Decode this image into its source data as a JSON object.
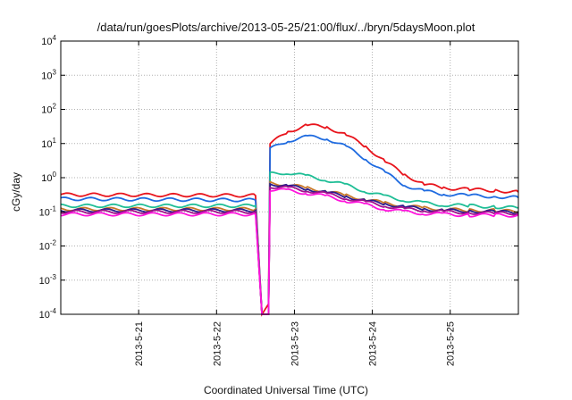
{
  "chart_data": {
    "type": "line",
    "title": "/data/run/goesPlots/archive/2013-05-25/21:00/flux/../bryn/5daysMoon.plot",
    "xlabel": "Coordinated Universal Time (UTC)",
    "ylabel": "cGy/day",
    "y_scale": "log",
    "xlim": [
      "2013-05-20T00:00",
      "2013-05-25T21:00"
    ],
    "ylim": [
      0.0001,
      10000
    ],
    "x_ticks": [
      "2013-5-21",
      "2013-5-22",
      "2013-5-23",
      "2013-5-24",
      "2013-5-25"
    ],
    "y_ticks": [
      {
        "base": "10",
        "exp": "-4"
      },
      {
        "base": "10",
        "exp": "-3"
      },
      {
        "base": "10",
        "exp": "-2"
      },
      {
        "base": "10",
        "exp": "-1"
      },
      {
        "base": "10",
        "exp": "0"
      },
      {
        "base": "10",
        "exp": "1"
      },
      {
        "base": "10",
        "exp": "2"
      },
      {
        "base": "10",
        "exp": "3"
      },
      {
        "base": "10",
        "exp": "4"
      }
    ],
    "grid": true,
    "series": [
      {
        "color": "#e8141c",
        "x": [
          "2013-05-20T00:00",
          "2013-05-22T12:00",
          "2013-05-22T14:00",
          "2013-05-22T16:00",
          "2013-05-22T16:30",
          "2013-05-22T22:00",
          "2013-05-23T04:00",
          "2013-05-23T10:00",
          "2013-05-23T16:00",
          "2013-05-23T22:00",
          "2013-05-24T04:00",
          "2013-05-24T10:00",
          "2013-05-24T16:00",
          "2013-05-24T22:00",
          "2013-05-25T06:00",
          "2013-05-25T14:00",
          "2013-05-25T21:00"
        ],
        "values": [
          0.32,
          0.3,
          0.0001,
          0.0002,
          10,
          22,
          35,
          30,
          18,
          8,
          3,
          1.2,
          0.65,
          0.5,
          0.45,
          0.42,
          0.38
        ]
      },
      {
        "color": "#1f6be0",
        "x": [
          "2013-05-20T00:00",
          "2013-05-22T12:00",
          "2013-05-22T14:00",
          "2013-05-22T16:00",
          "2013-05-22T16:30",
          "2013-05-22T22:00",
          "2013-05-23T04:00",
          "2013-05-23T10:00",
          "2013-05-23T16:00",
          "2013-05-23T22:00",
          "2013-05-24T04:00",
          "2013-05-24T10:00",
          "2013-05-24T16:00",
          "2013-05-24T22:00",
          "2013-05-25T06:00",
          "2013-05-25T14:00",
          "2013-05-25T21:00"
        ],
        "values": [
          0.24,
          0.22,
          0.0001,
          0.0001,
          7,
          12,
          16,
          14,
          8,
          3.5,
          1.4,
          0.6,
          0.4,
          0.33,
          0.3,
          0.28,
          0.26
        ]
      },
      {
        "color": "#1fbe96",
        "x": [
          "2013-05-20T00:00",
          "2013-05-22T12:00",
          "2013-05-22T14:00",
          "2013-05-22T16:00",
          "2013-05-22T16:30",
          "2013-05-22T22:00",
          "2013-05-23T04:00",
          "2013-05-23T10:00",
          "2013-05-23T16:00",
          "2013-05-23T22:00",
          "2013-05-24T04:00",
          "2013-05-24T10:00",
          "2013-05-24T16:00",
          "2013-05-24T22:00",
          "2013-05-25T06:00",
          "2013-05-25T14:00",
          "2013-05-25T21:00"
        ],
        "values": [
          0.15,
          0.15,
          0.0001,
          0.0001,
          1.3,
          1.4,
          1.1,
          0.85,
          0.6,
          0.4,
          0.28,
          0.22,
          0.18,
          0.16,
          0.15,
          0.14,
          0.13
        ]
      },
      {
        "color": "#c8782a",
        "x": [
          "2013-05-20T00:00",
          "2013-05-22T12:00",
          "2013-05-22T14:00",
          "2013-05-22T16:00",
          "2013-05-22T16:30",
          "2013-05-22T22:00",
          "2013-05-23T04:00",
          "2013-05-23T10:00",
          "2013-05-23T16:00",
          "2013-05-23T22:00",
          "2013-05-24T04:00",
          "2013-05-24T10:00",
          "2013-05-24T16:00",
          "2013-05-24T22:00",
          "2013-05-25T06:00",
          "2013-05-25T14:00",
          "2013-05-25T21:00"
        ],
        "values": [
          0.12,
          0.12,
          0.0001,
          0.0001,
          0.7,
          0.62,
          0.5,
          0.4,
          0.3,
          0.23,
          0.18,
          0.15,
          0.13,
          0.12,
          0.11,
          0.11,
          0.1
        ]
      },
      {
        "color": "#2a1a8c",
        "x": [
          "2013-05-20T00:00",
          "2013-05-22T12:00",
          "2013-05-22T14:00",
          "2013-05-22T16:00",
          "2013-05-22T16:30",
          "2013-05-22T22:00",
          "2013-05-23T04:00",
          "2013-05-23T10:00",
          "2013-05-23T16:00",
          "2013-05-23T22:00",
          "2013-05-24T04:00",
          "2013-05-24T10:00",
          "2013-05-24T16:00",
          "2013-05-24T22:00",
          "2013-05-25T06:00",
          "2013-05-25T14:00",
          "2013-05-25T21:00"
        ],
        "values": [
          0.11,
          0.11,
          0.0001,
          0.0001,
          0.65,
          0.58,
          0.46,
          0.37,
          0.28,
          0.21,
          0.17,
          0.14,
          0.12,
          0.11,
          0.105,
          0.1,
          0.095
        ]
      },
      {
        "color": "#a0148c",
        "x": [
          "2013-05-20T00:00",
          "2013-05-22T12:00",
          "2013-05-22T14:00",
          "2013-05-22T16:00",
          "2013-05-22T16:30",
          "2013-05-22T22:00",
          "2013-05-23T04:00",
          "2013-05-23T10:00",
          "2013-05-23T16:00",
          "2013-05-23T22:00",
          "2013-05-24T04:00",
          "2013-05-24T10:00",
          "2013-05-24T16:00",
          "2013-05-24T22:00",
          "2013-05-25T06:00",
          "2013-05-25T14:00",
          "2013-05-25T21:00"
        ],
        "values": [
          0.1,
          0.1,
          0.0001,
          0.0001,
          0.55,
          0.5,
          0.42,
          0.33,
          0.25,
          0.19,
          0.15,
          0.12,
          0.11,
          0.1,
          0.095,
          0.09,
          0.09
        ]
      },
      {
        "color": "#ff14dc",
        "x": [
          "2013-05-20T00:00",
          "2013-05-22T12:00",
          "2013-05-22T14:00",
          "2013-05-22T16:00",
          "2013-05-22T16:30",
          "2013-05-22T22:00",
          "2013-05-23T04:00",
          "2013-05-23T10:00",
          "2013-05-23T16:00",
          "2013-05-23T22:00",
          "2013-05-24T04:00",
          "2013-05-24T10:00",
          "2013-05-24T16:00",
          "2013-05-24T22:00",
          "2013-05-25T06:00",
          "2013-05-25T14:00",
          "2013-05-25T21:00"
        ],
        "values": [
          0.085,
          0.085,
          0.0001,
          0.0001,
          0.45,
          0.42,
          0.35,
          0.28,
          0.21,
          0.16,
          0.12,
          0.1,
          0.09,
          0.085,
          0.08,
          0.08,
          0.078
        ]
      }
    ]
  }
}
